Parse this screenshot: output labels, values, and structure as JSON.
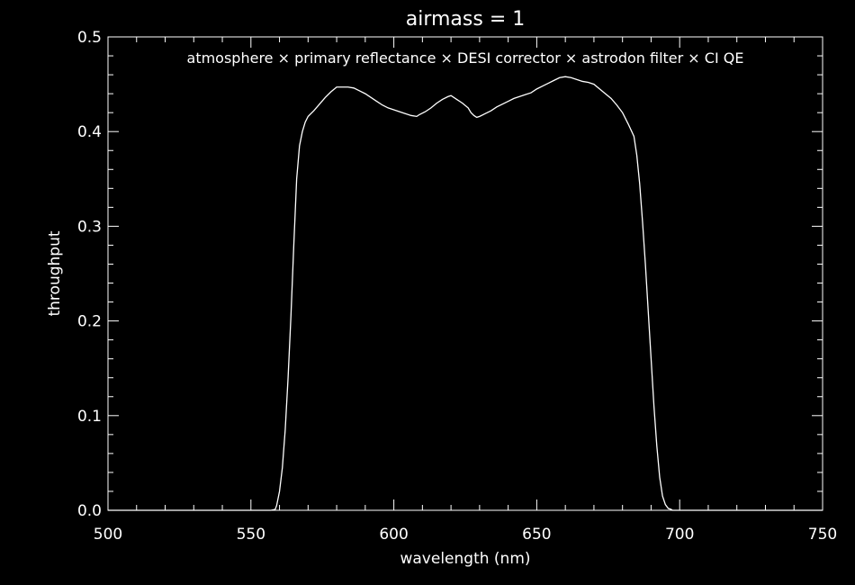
{
  "chart_data": {
    "type": "line",
    "title": "airmass = 1",
    "annotation": "atmosphere × primary reflectance × DESI corrector × astrodon filter × CI QE",
    "xlabel": "wavelength (nm)",
    "ylabel": "throughput",
    "xlim": [
      500,
      750
    ],
    "ylim": [
      0.0,
      0.5
    ],
    "xticks": [
      500,
      550,
      600,
      650,
      700,
      750
    ],
    "xtick_labels": [
      "500",
      "550",
      "600",
      "650",
      "700",
      "750"
    ],
    "xminor_step": 10,
    "yticks": [
      0.0,
      0.1,
      0.2,
      0.3,
      0.4,
      0.5
    ],
    "ytick_labels": [
      "0.0",
      "0.1",
      "0.2",
      "0.3",
      "0.4",
      "0.5"
    ],
    "yminor_step": 0.02,
    "grid": false,
    "colors": {
      "background": "#000000",
      "foreground": "#ffffff",
      "line": "#ffffff"
    },
    "series": [
      {
        "x": [
          500,
          555,
          557,
          558.5,
          559,
          560,
          561,
          562,
          563,
          564,
          565,
          566,
          567,
          568,
          569,
          570,
          572,
          574,
          576,
          578,
          580,
          582,
          584,
          586,
          588,
          590,
          592,
          594,
          596,
          598,
          600,
          602,
          604,
          606,
          608,
          609,
          611,
          613,
          615,
          617,
          619,
          620,
          622,
          624,
          626,
          627,
          628,
          629,
          630,
          632,
          634,
          636,
          638,
          640,
          642,
          644,
          646,
          648,
          650,
          652,
          654,
          656,
          658,
          660,
          662,
          664,
          666,
          668,
          670,
          672,
          674,
          676,
          678,
          680,
          682,
          684,
          685,
          686,
          687,
          688,
          689,
          690,
          691,
          692,
          693,
          694,
          695,
          696,
          697,
          697.5,
          698,
          750
        ],
        "y": [
          0.0,
          0.0,
          0.0,
          0.001,
          0.005,
          0.02,
          0.045,
          0.085,
          0.14,
          0.205,
          0.28,
          0.35,
          0.385,
          0.4,
          0.41,
          0.416,
          0.422,
          0.429,
          0.436,
          0.442,
          0.447,
          0.447,
          0.447,
          0.446,
          0.443,
          0.44,
          0.436,
          0.432,
          0.428,
          0.425,
          0.423,
          0.421,
          0.419,
          0.417,
          0.416,
          0.418,
          0.421,
          0.425,
          0.43,
          0.434,
          0.437,
          0.438,
          0.434,
          0.43,
          0.425,
          0.42,
          0.417,
          0.415,
          0.416,
          0.419,
          0.422,
          0.426,
          0.429,
          0.432,
          0.435,
          0.437,
          0.439,
          0.441,
          0.445,
          0.448,
          0.451,
          0.454,
          0.457,
          0.458,
          0.457,
          0.455,
          0.453,
          0.452,
          0.45,
          0.445,
          0.44,
          0.435,
          0.428,
          0.42,
          0.408,
          0.395,
          0.375,
          0.345,
          0.305,
          0.26,
          0.21,
          0.16,
          0.11,
          0.068,
          0.035,
          0.015,
          0.006,
          0.002,
          0.001,
          0.0,
          0.0,
          0.0
        ]
      }
    ]
  }
}
